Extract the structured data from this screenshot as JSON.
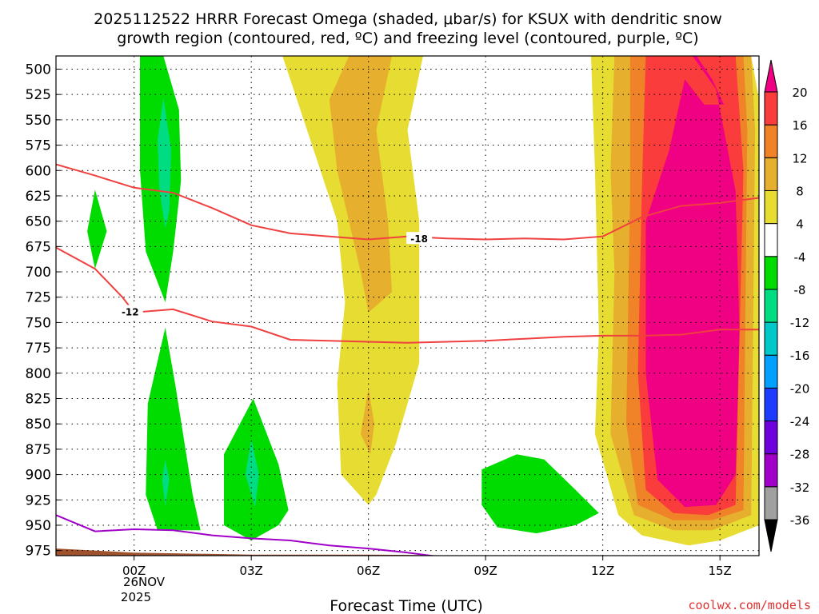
{
  "chart_data": {
    "type": "time-height-contour",
    "title_line1": "2025112522 HRRR Forecast Omega (shaded, μbar/s) for KSUX with dendritic snow",
    "title_line2": "growth region (contoured, red, ºC) and freezing level (contoured, purple, ºC)",
    "xlabel": "Forecast Time (UTC)",
    "credit": "coolwx.com/models",
    "xlim_hours": [
      -2.0,
      16.0
    ],
    "ylim_hpa": [
      487,
      980
    ],
    "y_ticks": [
      500,
      525,
      550,
      575,
      600,
      625,
      650,
      675,
      700,
      725,
      750,
      775,
      800,
      825,
      850,
      875,
      900,
      925,
      950,
      975
    ],
    "x_ticks": [
      {
        "hour": 0,
        "label": "00Z"
      },
      {
        "hour": 3,
        "label": "03Z"
      },
      {
        "hour": 6,
        "label": "06Z"
      },
      {
        "hour": 9,
        "label": "09Z"
      },
      {
        "hour": 12,
        "label": "12Z"
      },
      {
        "hour": 15,
        "label": "15Z"
      }
    ],
    "date_label": [
      "26NOV",
      "2025"
    ],
    "colorbar": {
      "levels": [
        -36,
        -32,
        -28,
        -24,
        -20,
        -16,
        -12,
        -8,
        -4,
        4,
        8,
        12,
        16,
        20
      ],
      "colors": [
        "#a0a0a0",
        "#a000c8",
        "#6e00dc",
        "#1e3cff",
        "#00a0ff",
        "#00c8c8",
        "#00dc82",
        "#00dc00",
        "#ffffff",
        "#e6dc32",
        "#e6af2d",
        "#f08228",
        "#fa3c3c",
        "#f00082"
      ],
      "under_color": "#000000",
      "over_color": "#f00082"
    },
    "omega_regions": [
      {
        "name": "rising-green-upper",
        "value_range": [
          -8,
          -4
        ],
        "color": "#00dc00",
        "points": [
          [
            0.15,
            487
          ],
          [
            0.75,
            487
          ],
          [
            1.15,
            540
          ],
          [
            1.2,
            610
          ],
          [
            1.0,
            680
          ],
          [
            0.8,
            730
          ],
          [
            0.3,
            680
          ],
          [
            0.15,
            600
          ]
        ]
      },
      {
        "name": "rising-teal-upper",
        "value_range": [
          -12,
          -8
        ],
        "color": "#00dc82",
        "points": [
          [
            0.75,
            528
          ],
          [
            0.95,
            580
          ],
          [
            0.9,
            640
          ],
          [
            0.8,
            657
          ],
          [
            0.65,
            620
          ],
          [
            0.6,
            570
          ]
        ]
      },
      {
        "name": "rising-green-left",
        "value_range": [
          -8,
          -4
        ],
        "color": "#00dc00",
        "points": [
          [
            -1.0,
            619
          ],
          [
            -0.7,
            660
          ],
          [
            -1.0,
            697
          ],
          [
            -1.2,
            660
          ]
        ]
      },
      {
        "name": "rising-green-mid",
        "value_range": [
          -8,
          -4
        ],
        "color": "#00dc00",
        "points": [
          [
            0.8,
            755
          ],
          [
            1.05,
            810
          ],
          [
            1.5,
            920
          ],
          [
            1.7,
            955
          ],
          [
            0.6,
            955
          ],
          [
            0.3,
            920
          ],
          [
            0.35,
            830
          ]
        ]
      },
      {
        "name": "rising-teal-mid",
        "value_range": [
          -12,
          -8
        ],
        "color": "#00dc82",
        "points": [
          [
            0.8,
            885
          ],
          [
            0.9,
            905
          ],
          [
            0.8,
            932
          ],
          [
            0.72,
            905
          ]
        ]
      },
      {
        "name": "rising-green-03z",
        "value_range": [
          -8,
          -4
        ],
        "color": "#00dc00",
        "points": [
          [
            3.05,
            825
          ],
          [
            3.7,
            890
          ],
          [
            3.95,
            935
          ],
          [
            3.7,
            950
          ],
          [
            3.0,
            965
          ],
          [
            2.3,
            950
          ],
          [
            2.3,
            880
          ]
        ]
      },
      {
        "name": "rising-teal-03z",
        "value_range": [
          -12,
          -8
        ],
        "color": "#00dc82",
        "points": [
          [
            3.0,
            865
          ],
          [
            3.2,
            900
          ],
          [
            3.1,
            932
          ],
          [
            2.85,
            900
          ]
        ]
      },
      {
        "name": "rising-green-10z",
        "value_range": [
          -8,
          -4
        ],
        "color": "#00dc00",
        "points": [
          [
            8.9,
            895
          ],
          [
            9.8,
            880
          ],
          [
            10.5,
            885
          ],
          [
            11.3,
            915
          ],
          [
            11.9,
            938
          ],
          [
            11.3,
            950
          ],
          [
            10.3,
            958
          ],
          [
            9.3,
            952
          ],
          [
            8.9,
            930
          ]
        ]
      },
      {
        "name": "sinking-yellow-06z",
        "value_range": [
          4,
          8
        ],
        "color": "#e6dc32",
        "points": [
          [
            3.8,
            487
          ],
          [
            7.4,
            487
          ],
          [
            7.0,
            560
          ],
          [
            7.3,
            650
          ],
          [
            7.3,
            790
          ],
          [
            6.7,
            870
          ],
          [
            6.2,
            920
          ],
          [
            6.0,
            930
          ],
          [
            5.3,
            900
          ],
          [
            5.2,
            810
          ],
          [
            5.4,
            730
          ],
          [
            5.2,
            650
          ],
          [
            4.6,
            580
          ]
        ]
      },
      {
        "name": "sinking-orange-06z",
        "value_range": [
          8,
          12
        ],
        "color": "#e6af2d",
        "points": [
          [
            5.5,
            487
          ],
          [
            6.6,
            487
          ],
          [
            6.2,
            560
          ],
          [
            6.5,
            650
          ],
          [
            6.6,
            720
          ],
          [
            6.0,
            740
          ],
          [
            5.8,
            700
          ],
          [
            5.2,
            600
          ],
          [
            5.0,
            530
          ]
        ]
      },
      {
        "name": "sinking-orange-06z-lower",
        "value_range": [
          8,
          12
        ],
        "color": "#e6af2d",
        "points": [
          [
            6.0,
            815
          ],
          [
            6.15,
            850
          ],
          [
            6.05,
            880
          ],
          [
            5.8,
            860
          ]
        ]
      },
      {
        "name": "sinking-yellow-14z",
        "value_range": [
          4,
          8
        ],
        "color": "#e6dc32",
        "points": [
          [
            11.7,
            487
          ],
          [
            15.8,
            487
          ],
          [
            16.0,
            530
          ],
          [
            16.0,
            950
          ],
          [
            15.0,
            965
          ],
          [
            14.2,
            970
          ],
          [
            13.0,
            960
          ],
          [
            12.4,
            940
          ],
          [
            11.8,
            860
          ],
          [
            11.9,
            760
          ],
          [
            11.8,
            600
          ]
        ]
      },
      {
        "name": "sinking-light-orange-14z",
        "value_range": [
          8,
          12
        ],
        "color": "#e6af2d",
        "points": [
          [
            12.3,
            487
          ],
          [
            15.8,
            487
          ],
          [
            15.9,
            560
          ],
          [
            15.8,
            940
          ],
          [
            14.8,
            955
          ],
          [
            13.8,
            955
          ],
          [
            12.8,
            940
          ],
          [
            12.2,
            860
          ],
          [
            12.3,
            700
          ],
          [
            12.2,
            600
          ]
        ]
      },
      {
        "name": "sinking-orange-14z",
        "value_range": [
          12,
          16
        ],
        "color": "#f08228",
        "points": [
          [
            12.7,
            487
          ],
          [
            15.6,
            487
          ],
          [
            15.7,
            560
          ],
          [
            15.6,
            935
          ],
          [
            14.8,
            945
          ],
          [
            13.8,
            945
          ],
          [
            12.9,
            930
          ],
          [
            12.6,
            850
          ],
          [
            12.7,
            620
          ]
        ]
      },
      {
        "name": "sinking-red-14z",
        "value_range": [
          16,
          20
        ],
        "color": "#fa3c3c",
        "points": [
          [
            13.1,
            487
          ],
          [
            15.4,
            487
          ],
          [
            15.6,
            600
          ],
          [
            15.4,
            930
          ],
          [
            14.7,
            940
          ],
          [
            13.8,
            938
          ],
          [
            13.1,
            915
          ],
          [
            12.9,
            800
          ],
          [
            13.0,
            620
          ]
        ]
      },
      {
        "name": "sinking-magenta-14z",
        "value_range": [
          20,
          99
        ],
        "color": "#f00082",
        "points": [
          [
            13.5,
            487
          ],
          [
            13.8,
            487
          ],
          [
            14.1,
            487
          ],
          [
            14.3,
            487
          ],
          [
            14.9,
            520
          ],
          [
            15.4,
            620
          ],
          [
            15.5,
            760
          ],
          [
            15.4,
            900
          ],
          [
            14.9,
            930
          ],
          [
            14.1,
            932
          ],
          [
            13.4,
            905
          ],
          [
            13.1,
            800
          ],
          [
            13.1,
            650
          ],
          [
            13.7,
            580
          ],
          [
            14.1,
            510
          ],
          [
            14.6,
            535
          ],
          [
            15.1,
            535
          ],
          [
            14.8,
            510
          ],
          [
            14.4,
            487
          ]
        ]
      }
    ],
    "ground": {
      "name": "terrain",
      "color": "#a0522d",
      "points": [
        [
          -2.0,
          973
        ],
        [
          0,
          977
        ],
        [
          3,
          979
        ],
        [
          6,
          979
        ],
        [
          9,
          980
        ],
        [
          12,
          980
        ],
        [
          16,
          980
        ],
        [
          16,
          990
        ],
        [
          -2,
          990
        ]
      ]
    },
    "contours": [
      {
        "name": "isotherm-minus-18",
        "label": "-18",
        "color": "#f04040",
        "label_at": [
          7.3,
          667
        ],
        "points": [
          [
            -2.0,
            594
          ],
          [
            -1.0,
            605
          ],
          [
            0.0,
            617
          ],
          [
            1.0,
            622
          ],
          [
            2.0,
            637
          ],
          [
            3.0,
            654
          ],
          [
            4.0,
            662
          ],
          [
            5.0,
            665
          ],
          [
            6.0,
            668
          ],
          [
            7.0,
            665
          ],
          [
            8.0,
            667
          ],
          [
            9.0,
            668
          ],
          [
            10.0,
            667
          ],
          [
            11.0,
            668
          ],
          [
            12.0,
            665
          ],
          [
            13.0,
            646
          ],
          [
            14.0,
            635
          ],
          [
            15.0,
            632
          ],
          [
            16.0,
            627
          ]
        ]
      },
      {
        "name": "isotherm-minus-12",
        "label": "-12",
        "color": "#f04040",
        "label_at": [
          -0.1,
          739
        ],
        "points": [
          [
            -2.0,
            676
          ],
          [
            -1.0,
            697
          ],
          [
            -0.3,
            725
          ],
          [
            0.0,
            740
          ],
          [
            1.0,
            737
          ],
          [
            2.0,
            749
          ],
          [
            3.0,
            754
          ],
          [
            4.0,
            767
          ],
          [
            5.0,
            768
          ],
          [
            6.0,
            769
          ],
          [
            7.0,
            770
          ],
          [
            8.0,
            769
          ],
          [
            9.0,
            768
          ],
          [
            10.0,
            766
          ],
          [
            11.0,
            764
          ],
          [
            12.0,
            763
          ],
          [
            13.0,
            763
          ],
          [
            14.0,
            762
          ],
          [
            15.0,
            757
          ],
          [
            16.0,
            757
          ]
        ]
      },
      {
        "name": "freezing-level-0c",
        "label": "",
        "color": "#a000c8",
        "label_at": null,
        "points": [
          [
            -2.0,
            940
          ],
          [
            -1.0,
            956
          ],
          [
            0.0,
            954
          ],
          [
            1.0,
            955
          ],
          [
            2.0,
            960
          ],
          [
            3.0,
            963
          ],
          [
            4.0,
            965
          ],
          [
            5.0,
            970
          ],
          [
            6.0,
            973
          ],
          [
            7.0,
            977
          ],
          [
            7.8,
            981
          ]
        ]
      }
    ]
  }
}
